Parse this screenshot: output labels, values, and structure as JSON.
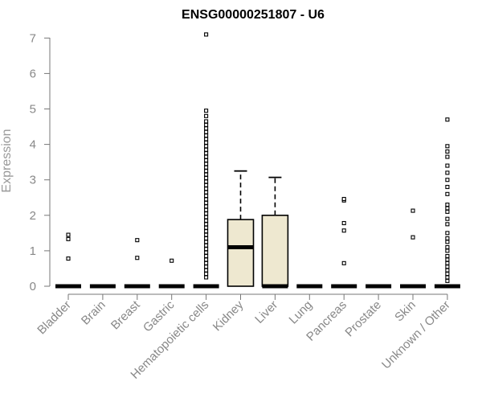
{
  "chart_data": {
    "type": "box",
    "title": "ENSG00000251807 - U6",
    "xlabel": "",
    "ylabel": "Expression",
    "ylim": [
      0,
      7
    ],
    "y_ticks": [
      0,
      1,
      2,
      3,
      4,
      5,
      6,
      7
    ],
    "box_color": "#eee8d0",
    "categories": [
      "Bladder",
      "Brain",
      "Breast",
      "Gastric",
      "Hematopoietic cells",
      "Kidney",
      "Liver",
      "Lung",
      "Pancreas",
      "Prostate",
      "Skin",
      "Unknown / Other"
    ],
    "boxes": [
      {
        "category": "Bladder",
        "min": 0,
        "q1": 0,
        "median": 0,
        "q3": 0,
        "max": 0,
        "outliers": [
          0.78,
          1.33,
          1.45
        ]
      },
      {
        "category": "Brain",
        "min": 0,
        "q1": 0,
        "median": 0,
        "q3": 0,
        "max": 0,
        "outliers": []
      },
      {
        "category": "Breast",
        "min": 0,
        "q1": 0,
        "median": 0,
        "q3": 0,
        "max": 0,
        "outliers": [
          0.8,
          1.3
        ]
      },
      {
        "category": "Gastric",
        "min": 0,
        "q1": 0,
        "median": 0,
        "q3": 0,
        "max": 0,
        "outliers": [
          0.72
        ]
      },
      {
        "category": "Hematopoietic cells",
        "min": 0,
        "q1": 0,
        "median": 0,
        "q3": 0,
        "max": 0,
        "outliers": [
          0.25,
          0.35,
          0.45,
          0.55,
          0.65,
          0.75,
          0.85,
          0.95,
          1.05,
          1.15,
          1.25,
          1.35,
          1.45,
          1.55,
          1.65,
          1.75,
          1.85,
          1.95,
          2.05,
          2.15,
          2.25,
          2.35,
          2.45,
          2.55,
          2.65,
          2.75,
          2.85,
          2.95,
          3.05,
          3.15,
          3.25,
          3.35,
          3.45,
          3.55,
          3.65,
          3.75,
          3.85,
          3.95,
          4.05,
          4.15,
          4.25,
          4.35,
          4.45,
          4.55,
          4.65,
          4.8,
          4.95,
          7.1
        ]
      },
      {
        "category": "Kidney",
        "min": 0,
        "q1": 0,
        "median": 1.1,
        "q3": 1.88,
        "max": 3.25,
        "outliers": []
      },
      {
        "category": "Liver",
        "min": 0,
        "q1": 0,
        "median": 0,
        "q3": 2.0,
        "max": 3.07,
        "outliers": []
      },
      {
        "category": "Lung",
        "min": 0,
        "q1": 0,
        "median": 0,
        "q3": 0,
        "max": 0,
        "outliers": []
      },
      {
        "category": "Pancreas",
        "min": 0,
        "q1": 0,
        "median": 0,
        "q3": 0,
        "max": 0,
        "outliers": [
          0.65,
          1.57,
          1.78,
          2.42,
          2.46
        ]
      },
      {
        "category": "Prostate",
        "min": 0,
        "q1": 0,
        "median": 0,
        "q3": 0,
        "max": 0,
        "outliers": []
      },
      {
        "category": "Skin",
        "min": 0,
        "q1": 0,
        "median": 0,
        "q3": 0,
        "max": 0,
        "outliers": [
          1.38,
          2.13
        ]
      },
      {
        "category": "Unknown / Other",
        "min": 0,
        "q1": 0,
        "median": 0,
        "q3": 0,
        "max": 0,
        "outliers": [
          0.15,
          0.25,
          0.35,
          0.45,
          0.55,
          0.65,
          0.75,
          0.85,
          1.0,
          1.1,
          1.25,
          1.35,
          1.5,
          1.75,
          1.9,
          2.1,
          2.2,
          2.3,
          2.6,
          2.8,
          3.0,
          3.2,
          3.4,
          3.65,
          3.8,
          3.95,
          4.7
        ]
      }
    ]
  }
}
